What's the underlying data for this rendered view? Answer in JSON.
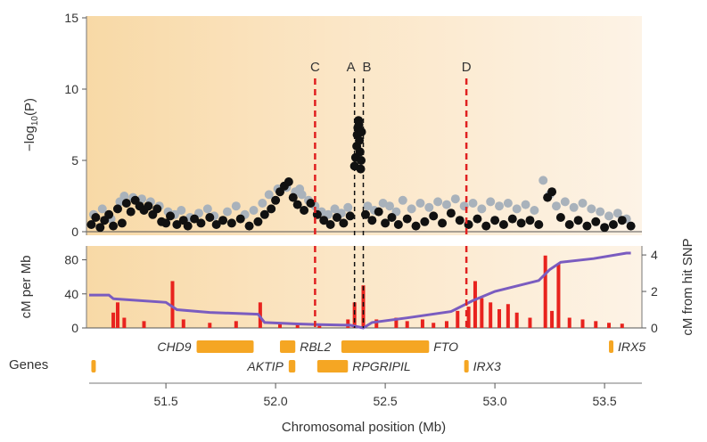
{
  "chart_data": [
    {
      "type": "scatter",
      "panel": "association",
      "ylabel_prefix": "−log",
      "ylabel_sub": "10",
      "ylabel_suffix": "(P)",
      "ylim": [
        0,
        15
      ],
      "yticks": [
        "0",
        "5",
        "10",
        "15"
      ],
      "xlim": [
        51.15,
        53.65
      ],
      "markers": [
        {
          "label": "C",
          "x": 52.18,
          "color": "#e02020"
        },
        {
          "label": "A",
          "x": 52.36,
          "color": "#111111"
        },
        {
          "label": "B",
          "x": 52.4,
          "color": "#111111"
        },
        {
          "label": "D",
          "x": 52.87,
          "color": "#e02020"
        }
      ],
      "series": [
        {
          "color": "#111111",
          "points": [
            [
              51.16,
              0.5
            ],
            [
              51.18,
              1.0
            ],
            [
              51.2,
              0.3
            ],
            [
              51.22,
              0.8
            ],
            [
              51.24,
              1.2
            ],
            [
              51.26,
              0.4
            ],
            [
              51.28,
              1.6
            ],
            [
              51.3,
              0.6
            ],
            [
              51.32,
              2.0
            ],
            [
              51.34,
              1.4
            ],
            [
              51.36,
              2.2
            ],
            [
              51.38,
              1.8
            ],
            [
              51.4,
              1.5
            ],
            [
              51.42,
              1.8
            ],
            [
              51.44,
              1.2
            ],
            [
              51.46,
              1.6
            ],
            [
              51.48,
              0.7
            ],
            [
              51.5,
              0.6
            ],
            [
              51.52,
              1.1
            ],
            [
              51.55,
              0.5
            ],
            [
              51.58,
              0.8
            ],
            [
              51.6,
              0.4
            ],
            [
              51.63,
              0.9
            ],
            [
              51.66,
              0.6
            ],
            [
              51.7,
              1.0
            ],
            [
              51.73,
              0.5
            ],
            [
              51.76,
              0.8
            ],
            [
              51.8,
              0.6
            ],
            [
              51.84,
              0.9
            ],
            [
              51.88,
              0.4
            ],
            [
              51.92,
              0.7
            ],
            [
              51.95,
              1.2
            ],
            [
              51.98,
              1.6
            ],
            [
              52.0,
              2.2
            ],
            [
              52.02,
              2.8
            ],
            [
              52.04,
              3.2
            ],
            [
              52.06,
              3.5
            ],
            [
              52.08,
              2.4
            ],
            [
              52.1,
              1.9
            ],
            [
              52.13,
              1.5
            ],
            [
              52.16,
              2.0
            ],
            [
              52.19,
              1.2
            ],
            [
              52.22,
              0.8
            ],
            [
              52.25,
              0.5
            ],
            [
              52.28,
              1.0
            ],
            [
              52.31,
              0.6
            ],
            [
              52.34,
              1.1
            ],
            [
              52.36,
              4.6
            ],
            [
              52.365,
              5.2
            ],
            [
              52.37,
              6.0
            ],
            [
              52.372,
              6.8
            ],
            [
              52.375,
              7.3
            ],
            [
              52.378,
              7.8
            ],
            [
              52.38,
              7.5
            ],
            [
              52.382,
              6.4
            ],
            [
              52.385,
              5.6
            ],
            [
              52.388,
              4.4
            ],
            [
              52.39,
              5.0
            ],
            [
              52.392,
              7.0
            ],
            [
              52.41,
              1.2
            ],
            [
              52.44,
              0.8
            ],
            [
              52.47,
              1.4
            ],
            [
              52.5,
              0.6
            ],
            [
              52.53,
              1.0
            ],
            [
              52.56,
              0.5
            ],
            [
              52.6,
              0.9
            ],
            [
              52.64,
              0.4
            ],
            [
              52.68,
              0.7
            ],
            [
              52.72,
              1.1
            ],
            [
              52.76,
              0.6
            ],
            [
              52.8,
              1.3
            ],
            [
              52.84,
              0.8
            ],
            [
              52.88,
              0.5
            ],
            [
              52.92,
              0.9
            ],
            [
              52.96,
              0.4
            ],
            [
              53.0,
              0.8
            ],
            [
              53.04,
              0.5
            ],
            [
              53.08,
              0.9
            ],
            [
              53.12,
              0.6
            ],
            [
              53.16,
              0.8
            ],
            [
              53.2,
              0.5
            ],
            [
              53.24,
              2.4
            ],
            [
              53.26,
              2.8
            ],
            [
              53.3,
              1.0
            ],
            [
              53.34,
              0.5
            ],
            [
              53.38,
              0.8
            ],
            [
              53.42,
              0.4
            ],
            [
              53.46,
              0.7
            ],
            [
              53.5,
              0.3
            ],
            [
              53.54,
              0.5
            ],
            [
              53.58,
              0.8
            ],
            [
              53.62,
              0.4
            ]
          ]
        },
        {
          "color": "#a9b2bb",
          "points": [
            [
              51.17,
              1.2
            ],
            [
              51.21,
              1.6
            ],
            [
              51.25,
              0.9
            ],
            [
              51.29,
              2.1
            ],
            [
              51.31,
              2.5
            ],
            [
              51.35,
              2.4
            ],
            [
              51.39,
              2.3
            ],
            [
              51.43,
              2.1
            ],
            [
              51.47,
              1.8
            ],
            [
              51.51,
              1.4
            ],
            [
              51.54,
              1.2
            ],
            [
              51.57,
              1.5
            ],
            [
              51.61,
              1.0
            ],
            [
              51.65,
              1.3
            ],
            [
              51.69,
              1.6
            ],
            [
              51.72,
              1.1
            ],
            [
              51.78,
              1.4
            ],
            [
              51.82,
              1.8
            ],
            [
              51.86,
              1.2
            ],
            [
              51.9,
              1.5
            ],
            [
              51.94,
              2.0
            ],
            [
              51.97,
              2.6
            ],
            [
              52.01,
              3.0
            ],
            [
              52.05,
              3.1
            ],
            [
              52.09,
              2.8
            ],
            [
              52.11,
              3.0
            ],
            [
              52.12,
              2.6
            ],
            [
              52.15,
              2.2
            ],
            [
              52.18,
              1.8
            ],
            [
              52.21,
              1.4
            ],
            [
              52.24,
              1.2
            ],
            [
              52.27,
              1.6
            ],
            [
              52.3,
              1.3
            ],
            [
              52.33,
              1.7
            ],
            [
              52.42,
              1.8
            ],
            [
              52.45,
              1.5
            ],
            [
              52.49,
              2.0
            ],
            [
              52.52,
              1.8
            ],
            [
              52.55,
              1.4
            ],
            [
              52.58,
              2.2
            ],
            [
              52.62,
              1.6
            ],
            [
              52.66,
              2.0
            ],
            [
              52.7,
              1.7
            ],
            [
              52.74,
              2.1
            ],
            [
              52.78,
              1.9
            ],
            [
              52.82,
              2.3
            ],
            [
              52.86,
              1.8
            ],
            [
              52.9,
              2.0
            ],
            [
              52.94,
              1.6
            ],
            [
              52.98,
              2.1
            ],
            [
              53.02,
              1.8
            ],
            [
              53.06,
              2.0
            ],
            [
              53.1,
              1.6
            ],
            [
              53.14,
              1.9
            ],
            [
              53.18,
              1.5
            ],
            [
              53.22,
              3.6
            ],
            [
              53.25,
              2.6
            ],
            [
              53.28,
              1.8
            ],
            [
              53.32,
              2.1
            ],
            [
              53.36,
              1.7
            ],
            [
              53.4,
              2.0
            ],
            [
              53.44,
              1.6
            ],
            [
              53.48,
              1.4
            ],
            [
              53.52,
              1.1
            ],
            [
              53.56,
              1.3
            ],
            [
              53.6,
              0.9
            ]
          ]
        }
      ]
    },
    {
      "type": "area",
      "panel": "recombination",
      "ylabel": "cM per Mb",
      "ylabel_right": "cM from hit SNP",
      "ylim": [
        0,
        90
      ],
      "yticks": [
        "0",
        "40",
        "80"
      ],
      "ylim_right": [
        0,
        4.2
      ],
      "yticks_right": [
        "0",
        "2",
        "4"
      ],
      "rate_color": "#e8231e",
      "cm_color": "#7a5cc0",
      "rate_peaks": [
        [
          51.26,
          18
        ],
        [
          51.28,
          30
        ],
        [
          51.31,
          12
        ],
        [
          51.4,
          8
        ],
        [
          51.53,
          55
        ],
        [
          51.58,
          10
        ],
        [
          51.7,
          6
        ],
        [
          51.82,
          8
        ],
        [
          51.93,
          30
        ],
        [
          52.02,
          6
        ],
        [
          52.1,
          5
        ],
        [
          52.2,
          4
        ],
        [
          52.33,
          10
        ],
        [
          52.36,
          30
        ],
        [
          52.4,
          50
        ],
        [
          52.46,
          10
        ],
        [
          52.55,
          12
        ],
        [
          52.6,
          8
        ],
        [
          52.67,
          10
        ],
        [
          52.72,
          6
        ],
        [
          52.78,
          8
        ],
        [
          52.83,
          20
        ],
        [
          52.88,
          25
        ],
        [
          52.91,
          55
        ],
        [
          52.94,
          35
        ],
        [
          52.98,
          30
        ],
        [
          53.02,
          22
        ],
        [
          53.06,
          28
        ],
        [
          53.1,
          18
        ],
        [
          53.16,
          12
        ],
        [
          53.23,
          85
        ],
        [
          53.26,
          20
        ],
        [
          53.29,
          75
        ],
        [
          53.34,
          12
        ],
        [
          53.4,
          10
        ],
        [
          53.46,
          8
        ],
        [
          53.52,
          6
        ],
        [
          53.58,
          5
        ]
      ],
      "cumulative_cm": [
        [
          51.15,
          1.8
        ],
        [
          51.24,
          1.8
        ],
        [
          51.26,
          1.6
        ],
        [
          51.5,
          1.4
        ],
        [
          51.55,
          1.0
        ],
        [
          51.7,
          0.85
        ],
        [
          51.92,
          0.75
        ],
        [
          51.95,
          0.3
        ],
        [
          52.1,
          0.22
        ],
        [
          52.2,
          0.18
        ],
        [
          52.34,
          0.15
        ],
        [
          52.38,
          0.05
        ],
        [
          52.4,
          0.0
        ],
        [
          52.44,
          0.3
        ],
        [
          52.6,
          0.55
        ],
        [
          52.8,
          0.9
        ],
        [
          52.9,
          1.5
        ],
        [
          53.0,
          2.0
        ],
        [
          53.2,
          2.6
        ],
        [
          53.25,
          3.2
        ],
        [
          53.3,
          3.6
        ],
        [
          53.45,
          3.8
        ],
        [
          53.6,
          4.1
        ],
        [
          53.62,
          4.1
        ]
      ]
    },
    {
      "type": "gene_track",
      "panel": "genes",
      "track_label": "Genes",
      "xlabel": "Chromosomal position (Mb)",
      "xticks": [
        "51.5",
        "52.0",
        "52.5",
        "53.0",
        "53.5"
      ],
      "gene_color": "#f5a623",
      "genes": [
        {
          "name": "CHD9",
          "start": 51.64,
          "end": 51.9,
          "row": 0
        },
        {
          "name": "RBL2",
          "start": 52.02,
          "end": 52.09,
          "row": 0
        },
        {
          "name": "FTO",
          "start": 52.3,
          "end": 52.7,
          "row": 0
        },
        {
          "name": "IRX5",
          "start": 53.52,
          "end": 53.54,
          "row": 0
        },
        {
          "name": "",
          "start": 51.16,
          "end": 51.17,
          "row": 1
        },
        {
          "name": "AKTIP",
          "start": 52.06,
          "end": 52.09,
          "row": 1
        },
        {
          "name": "RPGRIPIL",
          "start": 52.19,
          "end": 52.33,
          "row": 1
        },
        {
          "name": "IRX3",
          "start": 52.86,
          "end": 52.88,
          "row": 1
        }
      ]
    }
  ]
}
